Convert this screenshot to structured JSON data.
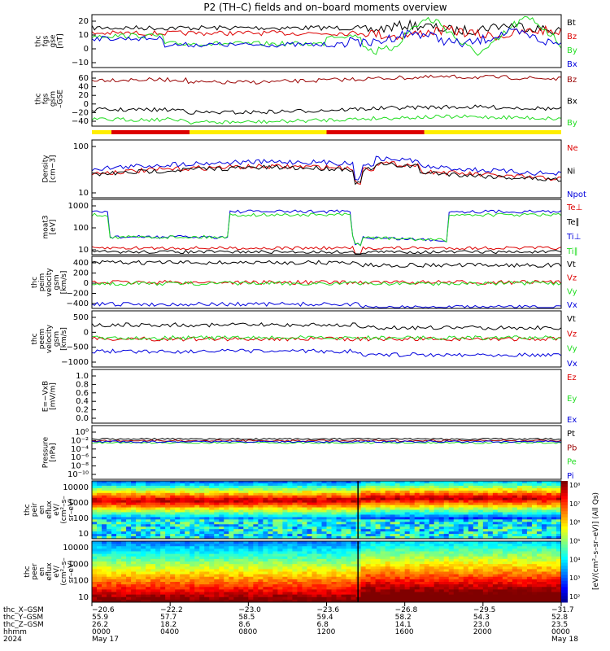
{
  "title": "P2 (TH–C) fields and on–board moments overview",
  "colors": {
    "black": "#000000",
    "red": "#dd0000",
    "green": "#22dd22",
    "blue": "#0000dd",
    "darkred": "#990000",
    "yellow": "#ffee00",
    "barred": "#dd0000"
  },
  "chart_data": [
    {
      "type": "line",
      "id": "fgs_gse",
      "ylabel": [
        "thc",
        "fgs",
        "gse",
        "[nT]"
      ],
      "yticks": [
        "20",
        "10",
        "0",
        "−10"
      ],
      "ylim": [
        -15,
        25
      ],
      "series": [
        {
          "name": "Bt",
          "color": "black",
          "base": 8
        },
        {
          "name": "Bz",
          "color": "red",
          "base": 5
        },
        {
          "name": "By",
          "color": "green",
          "base": 3
        },
        {
          "name": "Bx",
          "color": "blue",
          "base": 1
        }
      ]
    },
    {
      "type": "line",
      "id": "fgs_gsm",
      "ylabel": [
        "thc",
        "fgs",
        "gsm",
        "–GSE"
      ],
      "yticks": [
        "60",
        "40",
        "20",
        "0",
        "−20",
        "−40"
      ],
      "ylim": [
        -55,
        65
      ],
      "series": [
        {
          "name": "Bz",
          "color": "darkred",
          "base": 38
        },
        {
          "name": "Bx",
          "color": "black",
          "base": -5
        },
        {
          "name": "By",
          "color": "green",
          "base": -25
        }
      ]
    },
    {
      "type": "line",
      "id": "density",
      "ylabel": [
        "Density",
        "[cm−3]"
      ],
      "yticks": [
        "100",
        "10"
      ],
      "ylim_log": [
        0.2,
        2.3
      ],
      "series": [
        {
          "name": "Ne",
          "color": "red"
        },
        {
          "name": "Ni",
          "color": "black"
        },
        {
          "name": "Npot",
          "color": "blue"
        }
      ]
    },
    {
      "type": "line",
      "id": "temperature",
      "ylabel": [
        "moat3",
        "[eV]"
      ],
      "yticks": [
        "1000",
        "100",
        "10"
      ],
      "ylim_log": [
        0.8,
        3.3
      ],
      "series": [
        {
          "name": "Te⊥",
          "color": "red"
        },
        {
          "name": "Te∥",
          "color": "black"
        },
        {
          "name": "Ti⊥",
          "color": "blue"
        },
        {
          "name": "Ti∥",
          "color": "green"
        }
      ]
    },
    {
      "type": "line",
      "id": "peim",
      "ylabel": [
        "thc",
        "peim",
        "velocity",
        "gsm",
        "[km/s]"
      ],
      "yticks": [
        "400",
        "200",
        "0",
        "−200",
        "−400"
      ],
      "ylim": [
        -480,
        480
      ],
      "series": [
        {
          "name": "Vt",
          "color": "black",
          "base": 340
        },
        {
          "name": "Vz",
          "color": "red",
          "base": 10
        },
        {
          "name": "Vy",
          "color": "green",
          "base": 0
        },
        {
          "name": "Vx",
          "color": "blue",
          "base": -330
        }
      ]
    },
    {
      "type": "line",
      "id": "peem",
      "ylabel": [
        "thc",
        "peem",
        "velocity",
        "gsm",
        "[km/s]"
      ],
      "yticks": [
        "500",
        "0",
        "−500",
        "−1000"
      ],
      "ylim": [
        -1000,
        850
      ],
      "series": [
        {
          "name": "Vt",
          "color": "black",
          "base": 400
        },
        {
          "name": "Vz",
          "color": "red",
          "base": 0
        },
        {
          "name": "Vy",
          "color": "green",
          "base": 30
        },
        {
          "name": "Vx",
          "color": "blue",
          "base": -400
        }
      ]
    },
    {
      "type": "line",
      "id": "efield",
      "ylabel": [
        "E=−VxB",
        "[mV/m]"
      ],
      "yticks": [
        "1.0",
        "0.8",
        "0.6",
        "0.4",
        "0.2",
        "0.0"
      ],
      "ylim": [
        0,
        1
      ],
      "series": [
        {
          "name": "Ez",
          "color": "red"
        },
        {
          "name": "Ey",
          "color": "green"
        },
        {
          "name": "Ex",
          "color": "blue"
        }
      ]
    },
    {
      "type": "line",
      "id": "pressure",
      "ylabel": [
        "Pressure",
        "[nPa]"
      ],
      "yticks": [
        "10⁰",
        "10⁻²",
        "10⁻⁴",
        "10⁻⁶",
        "10⁻⁸",
        "10⁻¹⁰"
      ],
      "ylim_log": [
        -10.5,
        0.5
      ],
      "series": [
        {
          "name": "Pt",
          "color": "black"
        },
        {
          "name": "Pb",
          "color": "darkred"
        },
        {
          "name": "Pe",
          "color": "green"
        },
        {
          "name": "Pi",
          "color": "blue"
        }
      ]
    },
    {
      "type": "heatmap",
      "id": "peir",
      "ylabel": [
        "thc",
        "peir",
        "en",
        "eflux",
        "eV/",
        "(cm²–s–",
        "sr–eV)"
      ],
      "yticks": [
        "10000",
        "1000",
        "100",
        "10"
      ]
    },
    {
      "type": "heatmap",
      "id": "peer",
      "ylabel": [
        "thc",
        "peer",
        "en",
        "eflux",
        "eV/",
        "(cm²–s–",
        "sr–eV)"
      ],
      "yticks": [
        "10000",
        "1000",
        "100",
        "10"
      ]
    }
  ],
  "colorbar": {
    "ticks": [
      "10⁸",
      "10⁷",
      "10⁶",
      "10⁵",
      "10⁴",
      "10³",
      "10²"
    ],
    "label": "[eV/(cm²–s–sr–eV)] (All Qs)"
  },
  "axis": {
    "row_labels": [
      "thc_X–GSM",
      "thc_Y–GSM",
      "thc_Z–GSM",
      "hhmm",
      "2024"
    ],
    "columns": [
      {
        "x": "−20.6",
        "y": "55.9",
        "z": "26.2",
        "t": "0000",
        "d": "May 17"
      },
      {
        "x": "−22.2",
        "y": "57.7",
        "z": "18.2",
        "t": "0400",
        "d": ""
      },
      {
        "x": "−23.0",
        "y": "58.5",
        "z": "8.6",
        "t": "0800",
        "d": ""
      },
      {
        "x": "−23.6",
        "y": "59.4",
        "z": "6.8",
        "t": "1200",
        "d": ""
      },
      {
        "x": "−26.8",
        "y": "58.2",
        "z": "14.1",
        "t": "1600",
        "d": ""
      },
      {
        "x": "−29.5",
        "y": "54.3",
        "z": "23.0",
        "t": "2000",
        "d": ""
      },
      {
        "x": "−31.7",
        "y": "52.8",
        "z": "23.5",
        "t": "0000",
        "d": "May 18"
      }
    ]
  },
  "mode_bar": [
    {
      "from": 0,
      "to": 1,
      "color": "yellow"
    },
    {
      "from": 1,
      "to": 5,
      "color": "red"
    },
    {
      "from": 5,
      "to": 12,
      "color": "yellow"
    },
    {
      "from": 12,
      "to": 17,
      "color": "red"
    },
    {
      "from": 17,
      "to": 24,
      "color": "yellow"
    }
  ]
}
